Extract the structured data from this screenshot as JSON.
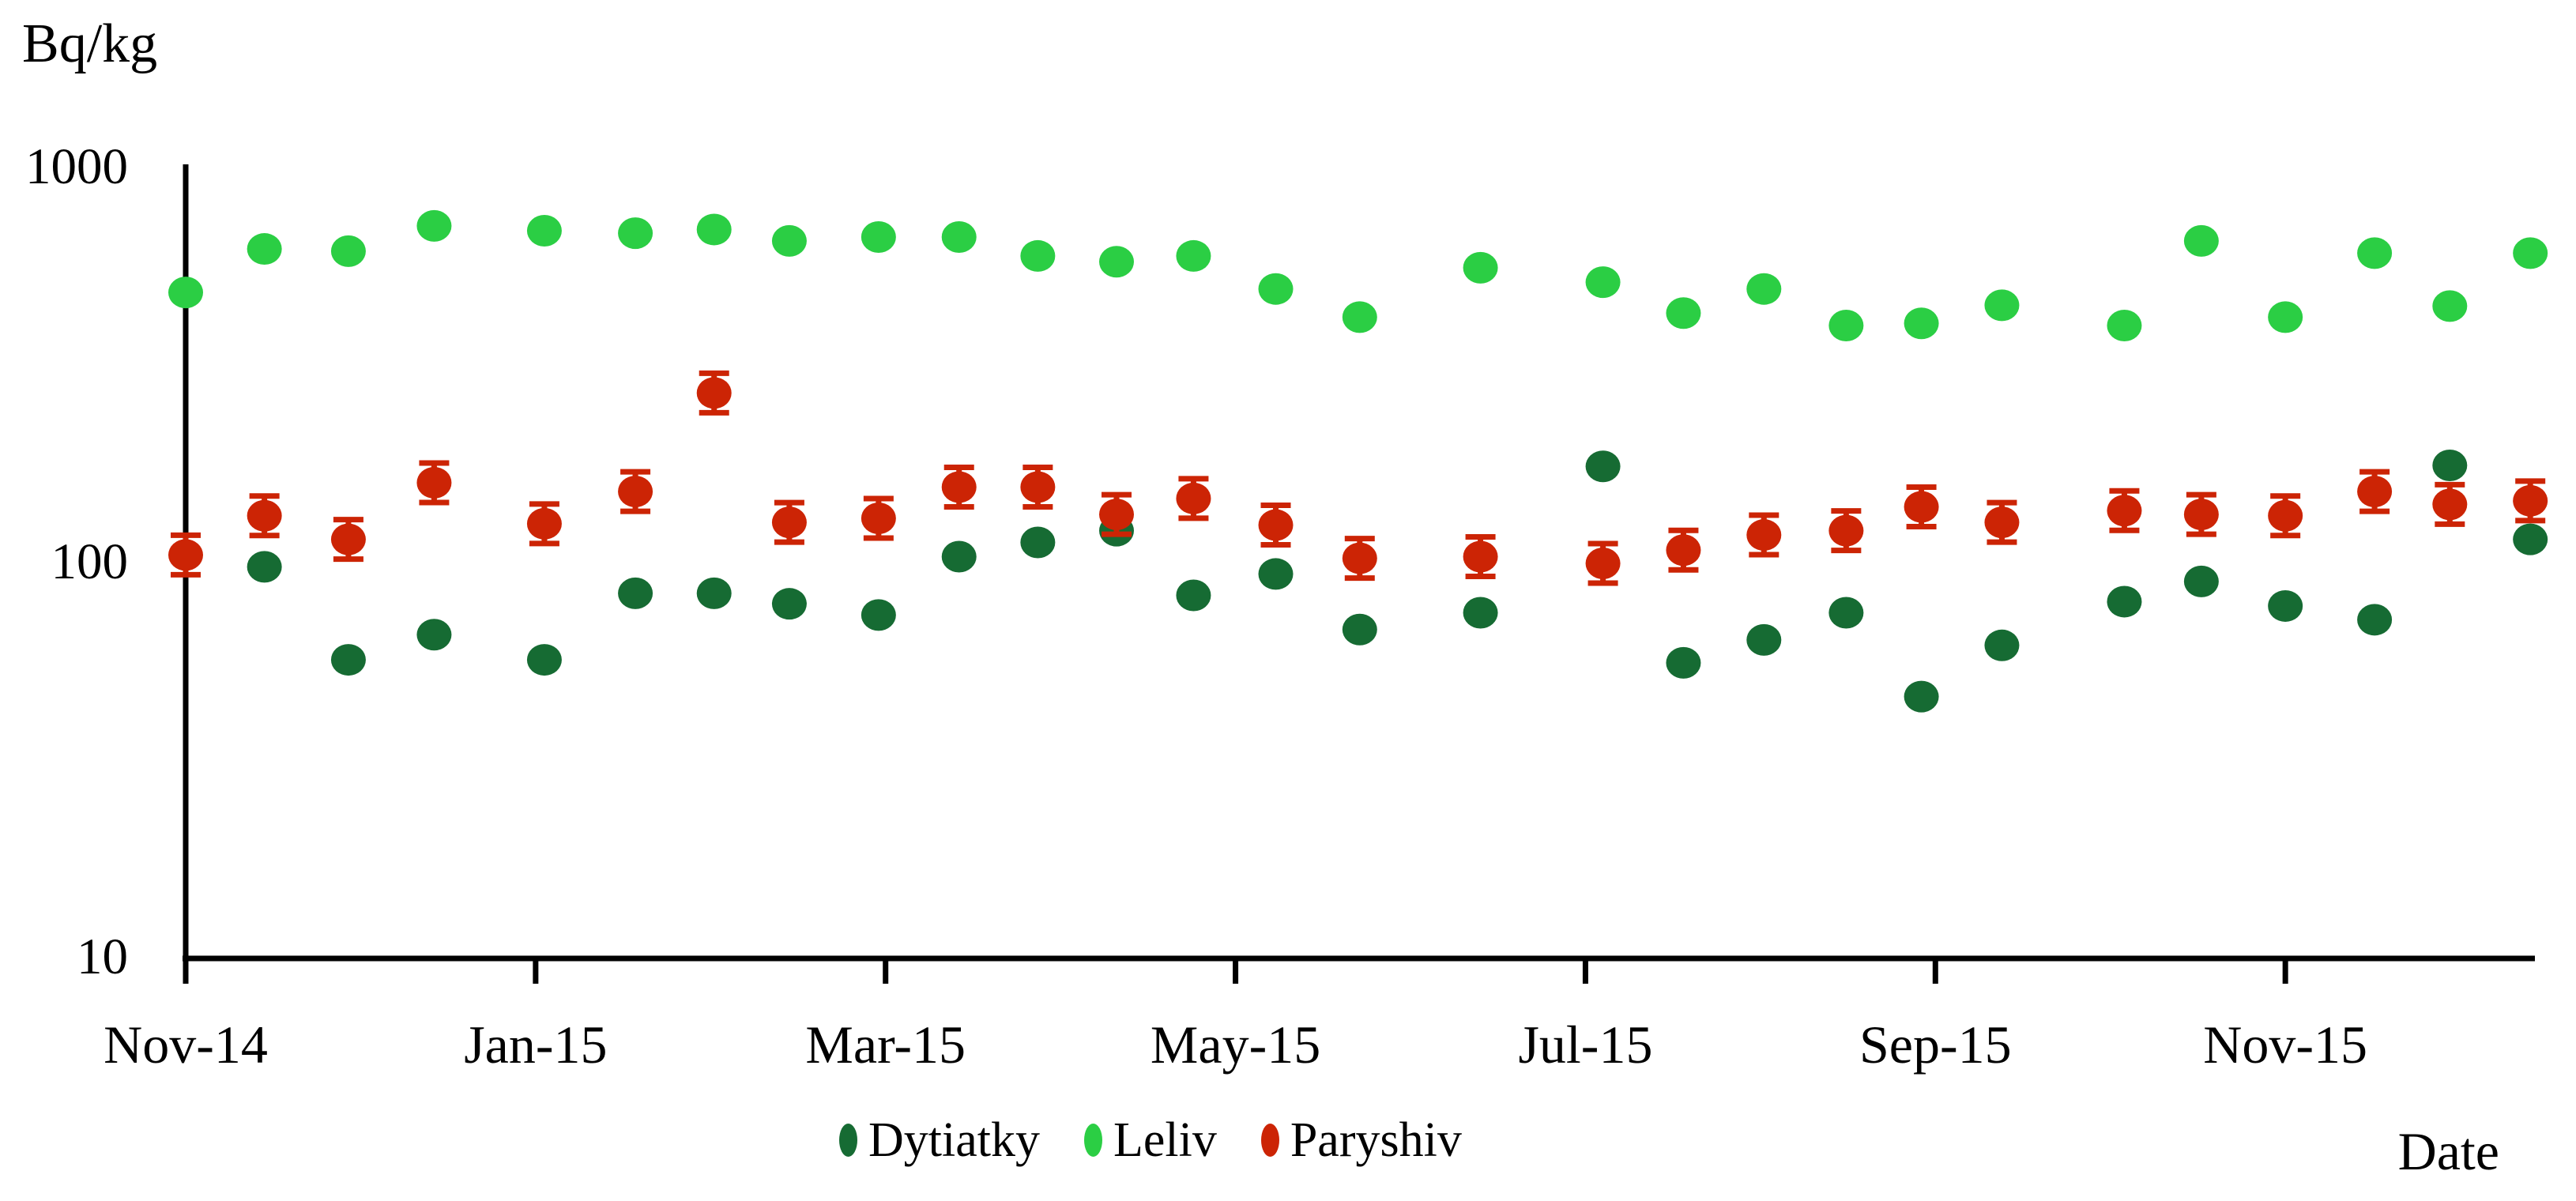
{
  "page": {
    "background": "#ffffff"
  },
  "header": {
    "y_axis_unit": "Bq/kg"
  },
  "footer": {
    "x_axis_title": "Date"
  },
  "legend": {
    "position": "bottom-center",
    "items": [
      {
        "label": "Dytiatky",
        "color": "#166B33"
      },
      {
        "label": "Leliv",
        "color": "#2BCE44"
      },
      {
        "label": "Paryshiv",
        "color": "#CC2405"
      }
    ]
  },
  "chart_data": {
    "type": "scatter",
    "title": "",
    "ylabel": "Bq/kg",
    "xlabel": "Date",
    "y_scale": "log",
    "ylim": [
      10,
      1000
    ],
    "y_ticks": [
      1000,
      100,
      10
    ],
    "grid": false,
    "legend_position": "bottom-center",
    "x_unit": "months since Nov-2014 (samples approx. biweekly, Nov-2014 to mid-Dec-2015)",
    "x_ticks": [
      {
        "label": "Nov-14",
        "month": 0
      },
      {
        "label": "Jan-15",
        "month": 2
      },
      {
        "label": "Mar-15",
        "month": 4
      },
      {
        "label": "May-15",
        "month": 6
      },
      {
        "label": "Jul-15",
        "month": 8
      },
      {
        "label": "Sep-15",
        "month": 10
      },
      {
        "label": "Nov-15",
        "month": 12
      }
    ],
    "series": [
      {
        "name": "Dytiatky",
        "color": "#166B33",
        "marker": "ellipse",
        "error_bars": false,
        "points": [
          [
            0.45,
            98
          ],
          [
            0.93,
            57
          ],
          [
            1.42,
            66
          ],
          [
            2.05,
            57
          ],
          [
            2.57,
            84
          ],
          [
            3.02,
            84
          ],
          [
            3.45,
            79
          ],
          [
            3.96,
            74
          ],
          [
            4.42,
            104
          ],
          [
            4.87,
            113
          ],
          [
            5.32,
            121
          ],
          [
            5.76,
            83
          ],
          [
            6.23,
            94
          ],
          [
            6.71,
            68
          ],
          [
            7.4,
            75
          ],
          [
            8.1,
            176
          ],
          [
            8.56,
            56
          ],
          [
            9.02,
            64
          ],
          [
            9.49,
            75
          ],
          [
            9.92,
            46
          ],
          [
            10.38,
            62
          ],
          [
            11.08,
            80
          ],
          [
            11.52,
            90
          ],
          [
            12.0,
            78
          ],
          [
            12.51,
            72
          ],
          [
            12.94,
            177
          ],
          [
            13.4,
            115
          ]
        ]
      },
      {
        "name": "Leliv",
        "color": "#2BCE44",
        "marker": "ellipse",
        "error_bars": false,
        "points": [
          [
            0.0,
            485
          ],
          [
            0.45,
            625
          ],
          [
            0.93,
            617
          ],
          [
            1.42,
            715
          ],
          [
            2.05,
            695
          ],
          [
            2.57,
            685
          ],
          [
            3.02,
            700
          ],
          [
            3.45,
            655
          ],
          [
            3.96,
            670
          ],
          [
            4.42,
            670
          ],
          [
            4.87,
            600
          ],
          [
            5.32,
            580
          ],
          [
            5.76,
            600
          ],
          [
            6.23,
            495
          ],
          [
            6.71,
            420
          ],
          [
            7.4,
            560
          ],
          [
            8.1,
            515
          ],
          [
            8.56,
            430
          ],
          [
            9.02,
            495
          ],
          [
            9.49,
            400
          ],
          [
            9.92,
            405
          ],
          [
            10.38,
            450
          ],
          [
            11.08,
            400
          ],
          [
            11.52,
            655
          ],
          [
            12.0,
            420
          ],
          [
            12.51,
            610
          ],
          [
            12.94,
            448
          ],
          [
            13.4,
            610
          ]
        ]
      },
      {
        "name": "Paryshiv",
        "color": "#CC2405",
        "marker": "ellipse",
        "error_bars": true,
        "points": [
          [
            0.0,
            105
          ],
          [
            0.45,
            132
          ],
          [
            0.93,
            115
          ],
          [
            1.42,
            160
          ],
          [
            2.05,
            126
          ],
          [
            2.57,
            152
          ],
          [
            3.02,
            270
          ],
          [
            3.45,
            127
          ],
          [
            3.96,
            130
          ],
          [
            4.42,
            156
          ],
          [
            4.87,
            156
          ],
          [
            5.32,
            133
          ],
          [
            5.76,
            146
          ],
          [
            6.23,
            125
          ],
          [
            6.71,
            103
          ],
          [
            7.4,
            104
          ],
          [
            8.1,
            100
          ],
          [
            8.56,
            108
          ],
          [
            9.02,
            118
          ],
          [
            9.49,
            121
          ],
          [
            9.92,
            139
          ],
          [
            10.38,
            127
          ],
          [
            11.08,
            136
          ],
          [
            11.52,
            133
          ],
          [
            12.0,
            132
          ],
          [
            12.51,
            152
          ],
          [
            12.94,
            141
          ],
          [
            13.4,
            144
          ]
        ]
      }
    ]
  }
}
